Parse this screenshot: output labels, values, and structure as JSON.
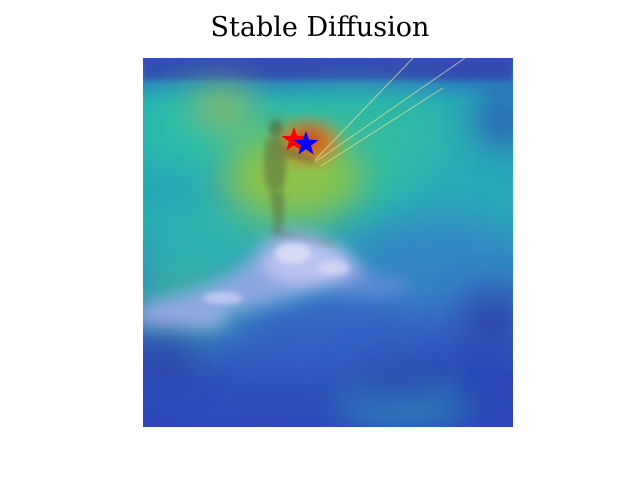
{
  "title": "Stable Diffusion",
  "image": {
    "description_icon": "kitesurfer-photo-with-attention-heatmap",
    "colormap": "jet",
    "colors": {
      "low": "#2d3fb8",
      "mid": "#27b6a8",
      "high": "#d9461e",
      "peak": "#8a1a1a"
    }
  },
  "markers": [
    {
      "name": "red-star",
      "color": "#ff0000"
    },
    {
      "name": "blue-star",
      "color": "#0000ff"
    }
  ]
}
